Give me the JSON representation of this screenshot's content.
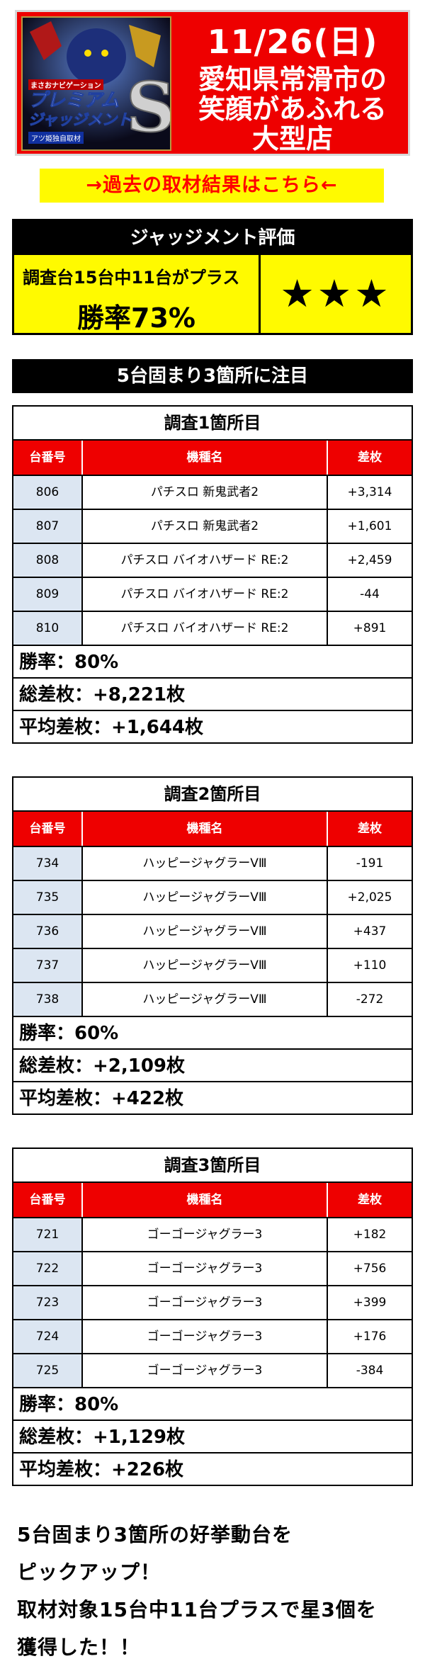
{
  "header": {
    "logo_lines": [
      "まさおナビゲーション",
      "プレミアム",
      "ジャッジメント",
      "アツ姫独自取材"
    ],
    "logo_letter": "S",
    "date": "11/26(日)",
    "store_lines": [
      "愛知県常滑市の",
      "笑顔があふれる",
      "大型店"
    ],
    "colors": {
      "header_bg": "#ee0000",
      "text": "#ffffff"
    }
  },
  "past_link": {
    "label": "→過去の取材結果はこちら←",
    "bg": "#fffa00",
    "color": "#ff0000"
  },
  "evaluation": {
    "title": "ジャッジメント評価",
    "summary": "調査台15台中11台がプラス",
    "win_rate": "勝率73%",
    "stars": "★★★"
  },
  "focus_banner": "5台固まり3箇所に注目",
  "table_headers": {
    "no": "台番号",
    "name": "機種名",
    "diff": "差枚"
  },
  "surveys": [
    {
      "title": "調査1箇所目",
      "rows": [
        {
          "no": "806",
          "name": "パチスロ 新鬼武者2",
          "diff": "+3,314"
        },
        {
          "no": "807",
          "name": "パチスロ 新鬼武者2",
          "diff": "+1,601"
        },
        {
          "no": "808",
          "name": "パチスロ バイオハザード RE:2",
          "diff": "+2,459"
        },
        {
          "no": "809",
          "name": "パチスロ バイオハザード RE:2",
          "diff": "-44"
        },
        {
          "no": "810",
          "name": "パチスロ バイオハザード RE:2",
          "diff": "+891"
        }
      ],
      "win_rate": "勝率：80%",
      "total": "総差枚：+8,221枚",
      "average": "平均差枚：+1,644枚"
    },
    {
      "title": "調査2箇所目",
      "rows": [
        {
          "no": "734",
          "name": "ハッピージャグラーVⅢ",
          "diff": "-191"
        },
        {
          "no": "735",
          "name": "ハッピージャグラーVⅢ",
          "diff": "+2,025"
        },
        {
          "no": "736",
          "name": "ハッピージャグラーVⅢ",
          "diff": "+437"
        },
        {
          "no": "737",
          "name": "ハッピージャグラーVⅢ",
          "diff": "+110"
        },
        {
          "no": "738",
          "name": "ハッピージャグラーVⅢ",
          "diff": "-272"
        }
      ],
      "win_rate": "勝率：60%",
      "total": "総差枚：+2,109枚",
      "average": "平均差枚：+422枚"
    },
    {
      "title": "調査3箇所目",
      "rows": [
        {
          "no": "721",
          "name": "ゴーゴージャグラー3",
          "diff": "+182"
        },
        {
          "no": "722",
          "name": "ゴーゴージャグラー3",
          "diff": "+756"
        },
        {
          "no": "723",
          "name": "ゴーゴージャグラー3",
          "diff": "+399"
        },
        {
          "no": "724",
          "name": "ゴーゴージャグラー3",
          "diff": "+176"
        },
        {
          "no": "725",
          "name": "ゴーゴージャグラー3",
          "diff": "-384"
        }
      ],
      "win_rate": "勝率：80%",
      "total": "総差枚：+1,129枚",
      "average": "平均差枚：+226枚"
    }
  ],
  "summary_lines": [
    "5台固まり3箇所の好挙動台を",
    "ピックアップ！",
    "取材対象15台中11台プラスで星3個を",
    "獲得した！！"
  ]
}
